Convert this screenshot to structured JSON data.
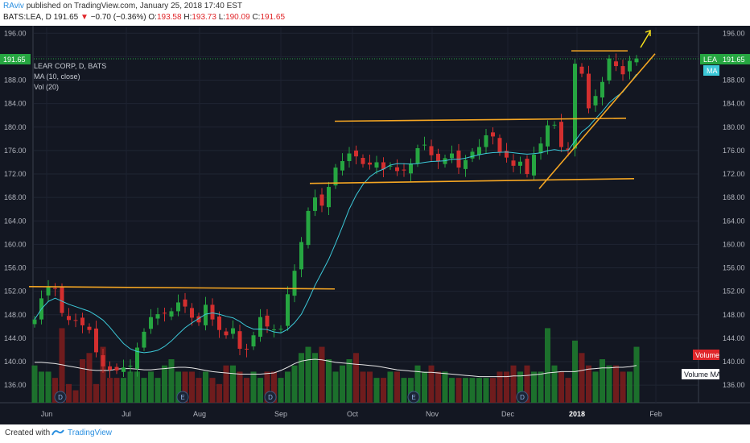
{
  "header": {
    "user": "RAviv",
    "published": "published on TradingView.com, January 25, 2018 17:40 EST",
    "symbol": "BATS:LEA, D",
    "last": "191.65",
    "arrow": "▼",
    "change": "−0.70 (−0.36%)",
    "o_label": "O:",
    "o_val": "193.58",
    "h_label": "H:",
    "h_val": "193.73",
    "l_label": "L:",
    "l_val": "190.09",
    "c_label": "C:",
    "c_val": "191.65"
  },
  "legend": {
    "line1": "LEAR CORP, D, BATS",
    "line2": "MA (10, close)",
    "line3": "Vol (20)"
  },
  "badges": {
    "price_left": "191.65",
    "lea": "LEA",
    "price_right": "191.65",
    "ma": "MA",
    "volume": "Volume",
    "volume_ma": "Volume MA"
  },
  "footer": {
    "created": "Created with",
    "brand": "TradingView"
  },
  "colors": {
    "background": "#131722",
    "up": "#26a641",
    "down": "#d32f2f",
    "ma_line": "#3cc8d8",
    "trend_lines": "#f5a623",
    "vol_ma": "#e6e6e6",
    "arrow": "#ffe81a"
  },
  "chart_data": {
    "type": "candlestick",
    "ylim": [
      133,
      197
    ],
    "y_ticks": [
      "196.00",
      "192.00",
      "188.00",
      "184.00",
      "180.00",
      "176.00",
      "172.00",
      "168.00",
      "164.00",
      "160.00",
      "156.00",
      "152.00",
      "148.00",
      "144.00",
      "140.00",
      "136.00"
    ],
    "x_ticks": [
      "Jun",
      "Jul",
      "Aug",
      "Sep",
      "Oct",
      "Nov",
      "Dec",
      "2018",
      "Feb"
    ],
    "events": [
      "D",
      "E",
      "D",
      "E",
      "D"
    ],
    "close_series": [
      147.2,
      150.8,
      152.8,
      152.5,
      148.3,
      147.1,
      147.0,
      146.2,
      145.4,
      141.6,
      139.2,
      138.6,
      138.5,
      139.0,
      139.3,
      142.4,
      145.1,
      147.6,
      148.1,
      148.2,
      148.6,
      150.1,
      149.4,
      147.5,
      146.7,
      149.7,
      147.2,
      145.4,
      144.5,
      145.7,
      142.2,
      142.1,
      144.5,
      147.6,
      146.0,
      145.5,
      145.6,
      151.5,
      155.5,
      160.4,
      165.7,
      168.0,
      166.6,
      169.8,
      173.1,
      174.2,
      175.5,
      175.0,
      173.7,
      173.6,
      174.0,
      172.8,
      173.4,
      172.5,
      172.6,
      173.8,
      176.4,
      177.0,
      175.2,
      174.2,
      174.7,
      175.5,
      173.1,
      174.4,
      175.8,
      176.6,
      178.6,
      178.4,
      175.7,
      174.8,
      173.4,
      174.1,
      172.0,
      175.3,
      177.2,
      180.3,
      180.4,
      176.6,
      176.1,
      190.8,
      189.1,
      183.2,
      185.3,
      187.7,
      191.7,
      190.4,
      189.0,
      191.3,
      191.7
    ],
    "volume_series": [
      6,
      5,
      5,
      4,
      12,
      3,
      2,
      7,
      8,
      3,
      9,
      4,
      4,
      4,
      5,
      5,
      4,
      5,
      4,
      6,
      7,
      5,
      5,
      5,
      4,
      5,
      4,
      3,
      6,
      6,
      5,
      4,
      5,
      4,
      5,
      5,
      4,
      5,
      6,
      8,
      9,
      8,
      9,
      7,
      5,
      6,
      7,
      8,
      5,
      5,
      4,
      4,
      5,
      5,
      4,
      4,
      6,
      5,
      6,
      5,
      5,
      4,
      4,
      4,
      4,
      4,
      4,
      4,
      5,
      5,
      6,
      5,
      6,
      5,
      5,
      12,
      6,
      5,
      4,
      10,
      8,
      6,
      5,
      7,
      6,
      6,
      5,
      5,
      9
    ],
    "volume_ma_series": [
      6.5,
      6.5,
      6.4,
      6.3,
      6.1,
      5.9,
      5.7,
      5.5,
      5.3,
      5.2,
      5.2,
      5.2,
      5.4,
      5.5,
      5.5,
      5.4,
      5.3,
      5.3,
      5.4,
      5.5,
      5.6,
      5.7,
      5.7,
      5.6,
      5.4,
      5.2,
      5.0,
      4.9,
      4.8,
      4.7,
      4.6,
      4.6,
      4.6,
      4.6,
      4.7,
      4.8,
      5.2,
      5.7,
      6.3,
      6.7,
      6.9,
      7.0,
      6.9,
      6.7,
      6.5,
      6.4,
      6.3,
      6.2,
      6.1,
      6.0,
      5.9,
      5.7,
      5.5,
      5.3,
      5.2,
      5.1,
      5.0,
      4.9,
      4.9,
      4.8,
      4.7,
      4.6,
      4.5,
      4.4,
      4.3,
      4.2,
      4.2,
      4.2,
      4.2,
      4.2,
      4.3,
      4.3,
      4.4,
      4.5,
      4.6,
      4.8,
      4.9,
      5.0,
      5.0,
      5.0,
      5.2,
      5.4,
      5.5,
      5.6,
      5.6,
      5.7,
      5.7,
      5.8,
      6.0
    ]
  }
}
